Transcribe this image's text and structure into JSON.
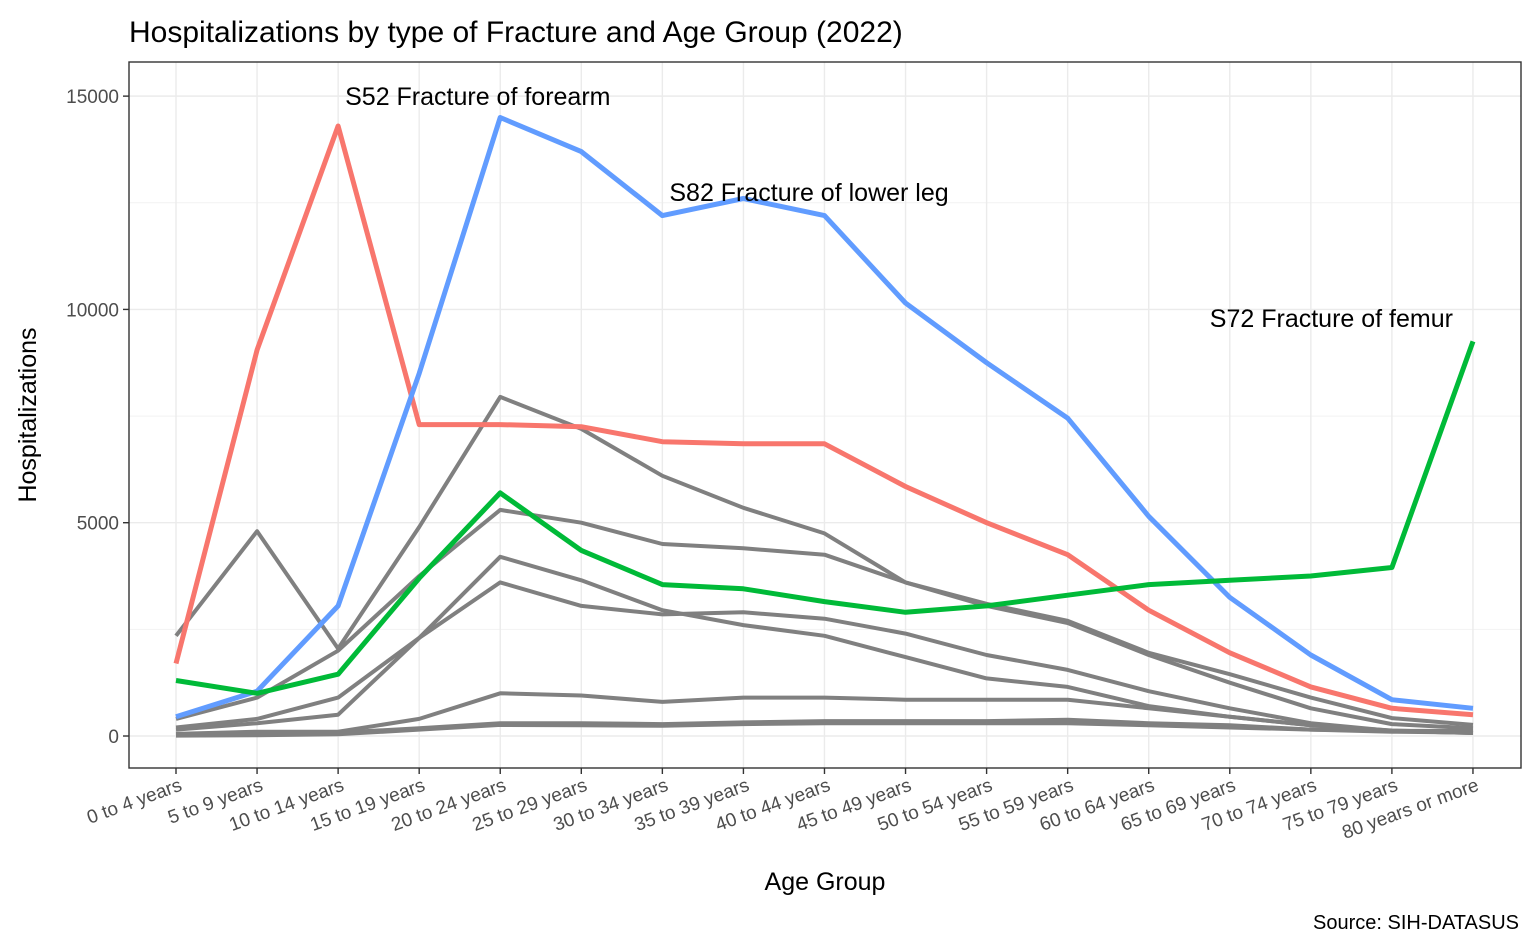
{
  "chart_data": {
    "type": "line",
    "title": "Hospitalizations by type of Fracture and Age Group (2022)",
    "xlabel": "Age Group",
    "ylabel": "Hospitalizations",
    "caption": "Source: SIH-DATASUS",
    "ylim": [
      -750,
      15800
    ],
    "yticks": [
      0,
      5000,
      10000,
      15000
    ],
    "grid": true,
    "legend": "none",
    "categories": [
      "0 to 4 years",
      "5 to 9 years",
      "10 to 14 years",
      "15 to 19 years",
      "20 to 24 years",
      "25 to 29 years",
      "30 to 34 years",
      "35 to 39 years",
      "40 to 44 years",
      "45 to 49 years",
      "50 to 54 years",
      "55 to 59 years",
      "60 to 64 years",
      "65 to 69 years",
      "70 to 74 years",
      "75 to 79 years",
      "80 years or more"
    ],
    "series": [
      {
        "color": "#808080",
        "highlight": false,
        "values": [
          2350,
          4800,
          2050,
          4900,
          7950,
          7200,
          6100,
          5350,
          4750,
          3600,
          3050,
          2650,
          1900,
          1250,
          650,
          280,
          180
        ]
      },
      {
        "color": "#808080",
        "highlight": false,
        "values": [
          400,
          900,
          2000,
          3750,
          5300,
          5000,
          4500,
          4400,
          4250,
          3600,
          3100,
          2700,
          1950,
          1450,
          900,
          420,
          260
        ]
      },
      {
        "color": "#808080",
        "highlight": false,
        "values": [
          200,
          400,
          900,
          2300,
          4200,
          3650,
          2950,
          2600,
          2350,
          1850,
          1350,
          1150,
          700,
          450,
          250,
          130,
          80
        ]
      },
      {
        "color": "#808080",
        "highlight": false,
        "values": [
          150,
          300,
          500,
          2300,
          3600,
          3050,
          2850,
          2900,
          2750,
          2400,
          1900,
          1550,
          1050,
          650,
          300,
          120,
          70
        ]
      },
      {
        "color": "#808080",
        "highlight": false,
        "values": [
          50,
          100,
          100,
          400,
          1000,
          950,
          800,
          900,
          900,
          850,
          850,
          850,
          650,
          450,
          250,
          120,
          70
        ]
      },
      {
        "color": "#808080",
        "highlight": false,
        "values": [
          20,
          40,
          80,
          180,
          300,
          300,
          280,
          320,
          350,
          350,
          350,
          380,
          300,
          250,
          150,
          120,
          120
        ]
      },
      {
        "color": "#808080",
        "highlight": false,
        "values": [
          10,
          20,
          40,
          150,
          260,
          250,
          240,
          280,
          300,
          300,
          300,
          300,
          250,
          200,
          150,
          100,
          80
        ]
      },
      {
        "color": "#F8766D",
        "highlight": true,
        "values": [
          1700,
          9050,
          14300,
          7300,
          7300,
          7250,
          6900,
          6850,
          6850,
          5850,
          5000,
          4250,
          2950,
          1950,
          1150,
          650,
          500
        ]
      },
      {
        "color": "#619CFF",
        "highlight": true,
        "values": [
          450,
          1050,
          3050,
          8500,
          14500,
          13700,
          12200,
          12600,
          12200,
          10150,
          8750,
          7450,
          5150,
          3250,
          1900,
          850,
          650
        ]
      },
      {
        "color": "#00BA38",
        "highlight": true,
        "values": [
          1300,
          1000,
          1450,
          3700,
          5700,
          4350,
          3550,
          3450,
          3150,
          2900,
          3050,
          3300,
          3550,
          3650,
          3750,
          3950,
          9250
        ]
      }
    ],
    "annotations": [
      {
        "text": "S52 Fracture of forearm",
        "x": "10 to 14 years",
        "y": 15000,
        "anchor": "start"
      },
      {
        "text": "S82 Fracture of lower leg",
        "x": "30 to 34 years",
        "y": 12750,
        "anchor": "start"
      },
      {
        "text": "S72 Fracture of femur",
        "x": "80 years or more",
        "y": 9800,
        "anchor": "end"
      }
    ]
  }
}
